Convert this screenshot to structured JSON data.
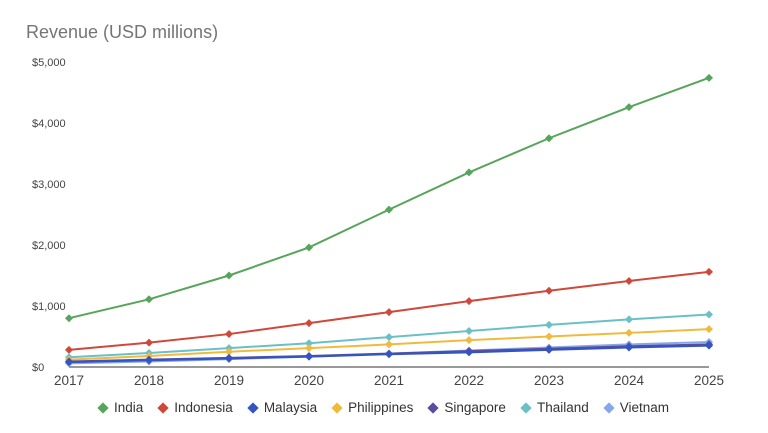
{
  "chart_data": {
    "type": "line",
    "title": "Revenue (USD millions)",
    "xlabel": "",
    "ylabel": "",
    "categories": [
      "2017",
      "2018",
      "2019",
      "2020",
      "2021",
      "2022",
      "2023",
      "2024",
      "2025"
    ],
    "ylim": [
      0,
      5000
    ],
    "yticks": [
      "$0",
      "$1,000",
      "$2,000",
      "$3,000",
      "$4,000",
      "$5,000"
    ],
    "grid": false,
    "legend_position": "bottom",
    "series": [
      {
        "name": "India",
        "color": "#57a55a",
        "values": [
          800,
          1110,
          1500,
          1960,
          2580,
          3190,
          3750,
          4260,
          4740
        ]
      },
      {
        "name": "Indonesia",
        "color": "#d0483a",
        "values": [
          280,
          400,
          540,
          720,
          900,
          1080,
          1250,
          1410,
          1560
        ]
      },
      {
        "name": "Malaysia",
        "color": "#3355c4",
        "values": [
          80,
          110,
          140,
          170,
          210,
          240,
          280,
          320,
          350
        ]
      },
      {
        "name": "Philippines",
        "color": "#f0bb3c",
        "values": [
          120,
          180,
          250,
          310,
          370,
          440,
          500,
          560,
          620
        ]
      },
      {
        "name": "Singapore",
        "color": "#5a4d9e",
        "values": [
          90,
          120,
          150,
          180,
          220,
          260,
          300,
          340,
          370
        ]
      },
      {
        "name": "Thailand",
        "color": "#6bbfc7",
        "values": [
          160,
          230,
          310,
          390,
          490,
          590,
          690,
          780,
          860
        ]
      },
      {
        "name": "Vietnam",
        "color": "#86a7e8",
        "values": [
          60,
          90,
          130,
          170,
          220,
          270,
          320,
          370,
          410
        ]
      }
    ]
  }
}
